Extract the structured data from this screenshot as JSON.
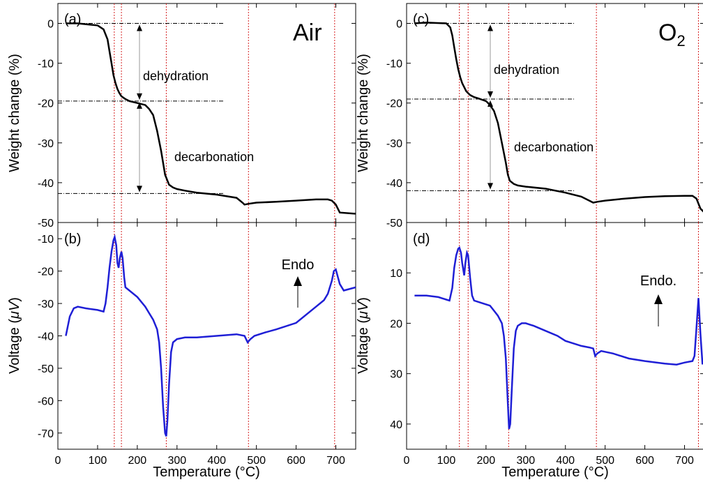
{
  "figure": {
    "x_axis_label": "Temperature (°C)",
    "panel_left": {
      "weight_ylabel": "Weight change (%)",
      "voltage_ylabel": "Voltage (μV)",
      "tag_weight": "(a)",
      "tag_voltage": "(b)",
      "atmosphere_label": "Air",
      "atmosphere_sub": "",
      "dehydration_label": "dehydration",
      "decarbonation_label": "decarbonation",
      "endo_label": "Endo"
    },
    "panel_right": {
      "weight_ylabel": "Weight change (%)",
      "voltage_ylabel": "Voltage (μV)",
      "tag_weight": "(c)",
      "tag_voltage": "(d)",
      "atmosphere_label": "O",
      "atmosphere_sub": "2",
      "dehydration_label": "dehydration",
      "decarbonation_label": "decarbonation",
      "endo_label": "Endo."
    }
  },
  "colors": {
    "tg_curve": "#000000",
    "dta_curve": "#1f1fd6",
    "event_line": "#d62020",
    "annotation_line": "#000000"
  },
  "chart_data": [
    {
      "id": "a",
      "type": "line",
      "title": "",
      "xlabel": "Temperature (°C)",
      "ylabel": "Weight change (%)",
      "xlim": [
        0,
        750
      ],
      "ylim": [
        -50,
        5
      ],
      "xticks": [
        0,
        100,
        200,
        300,
        400,
        500,
        600,
        700
      ],
      "yticks": [
        0,
        -10,
        -20,
        -30,
        -40,
        -50
      ],
      "annotations": [
        "(a)",
        "Air",
        "dehydration",
        "decarbonation"
      ],
      "series": [
        {
          "x": [
            20,
            50,
            100,
            115,
            125,
            130,
            135,
            140,
            145,
            150,
            155,
            160,
            170,
            180,
            200,
            220,
            230,
            240,
            250,
            260,
            270,
            280,
            290,
            300,
            320,
            350,
            400,
            450,
            465,
            470,
            480,
            500,
            550,
            600,
            650,
            680,
            690,
            700,
            710,
            750
          ],
          "y": [
            0,
            0,
            -0.5,
            -1.5,
            -4,
            -7,
            -10,
            -13,
            -15,
            -16.5,
            -17.5,
            -18.3,
            -19,
            -19.5,
            -20,
            -20.5,
            -21.5,
            -23,
            -27,
            -32,
            -38,
            -40.5,
            -41.2,
            -41.6,
            -42,
            -42.5,
            -43,
            -43.8,
            -45,
            -45.5,
            -45.3,
            -45,
            -44.8,
            -44.5,
            -44.2,
            -44.2,
            -44.5,
            -45.5,
            -47.5,
            -47.8
          ]
        }
      ],
      "reference_lines": {
        "horizontal_levels": [
          0,
          -19.5,
          -42.7
        ],
        "vertical_temperatures": [
          142,
          160,
          273,
          480,
          697
        ]
      }
    },
    {
      "id": "b",
      "type": "line",
      "title": "",
      "xlabel": "Temperature (°C)",
      "ylabel": "Voltage (μV)",
      "xlim": [
        0,
        750
      ],
      "ylim": [
        -75,
        -5
      ],
      "xticks": [
        0,
        100,
        200,
        300,
        400,
        500,
        600,
        700
      ],
      "yticks": [
        -10,
        -20,
        -30,
        -40,
        -50,
        -60,
        -70
      ],
      "annotations": [
        "(b)",
        "Endo"
      ],
      "series": [
        {
          "x": [
            20,
            30,
            40,
            50,
            70,
            100,
            115,
            120,
            125,
            130,
            135,
            140,
            143,
            147,
            150,
            153,
            156,
            160,
            163,
            167,
            170,
            180,
            200,
            220,
            230,
            240,
            250,
            255,
            260,
            265,
            270,
            273,
            276,
            280,
            285,
            290,
            300,
            320,
            350,
            400,
            450,
            470,
            478,
            485,
            495,
            520,
            550,
            600,
            650,
            670,
            680,
            690,
            695,
            700,
            710,
            720,
            750
          ],
          "y": [
            -40,
            -34,
            -31.5,
            -31,
            -31.5,
            -32,
            -32.5,
            -30,
            -25,
            -19,
            -14,
            -10.5,
            -9.5,
            -12,
            -17.5,
            -19,
            -16,
            -14,
            -16,
            -22,
            -25,
            -26,
            -28,
            -31,
            -33,
            -35,
            -38,
            -42,
            -50,
            -62,
            -70,
            -71,
            -66,
            -55,
            -45,
            -42,
            -41,
            -40.5,
            -40.5,
            -40,
            -39.5,
            -40,
            -42,
            -41,
            -40,
            -39,
            -38,
            -36,
            -31,
            -29,
            -27,
            -23,
            -20,
            -19.5,
            -24,
            -26,
            -25
          ]
        }
      ],
      "reference_lines": {
        "vertical_temperatures": [
          142,
          160,
          273,
          480,
          697
        ]
      }
    },
    {
      "id": "c",
      "type": "line",
      "title": "",
      "xlabel": "Temperature (°C)",
      "ylabel": "Weight change (%)",
      "xlim": [
        0,
        750
      ],
      "ylim": [
        -50,
        5
      ],
      "xticks": [
        0,
        100,
        200,
        300,
        400,
        500,
        600,
        700
      ],
      "yticks": [
        0,
        -10,
        -20,
        -30,
        -40,
        -50
      ],
      "annotations": [
        "(c)",
        "O2",
        "dehydration",
        "decarbonation"
      ],
      "series": [
        {
          "x": [
            20,
            50,
            100,
            110,
            115,
            120,
            125,
            130,
            135,
            140,
            145,
            150,
            155,
            160,
            170,
            180,
            200,
            210,
            220,
            230,
            240,
            250,
            255,
            260,
            270,
            280,
            300,
            350,
            400,
            440,
            460,
            470,
            480,
            500,
            550,
            600,
            650,
            700,
            720,
            730,
            740,
            750
          ],
          "y": [
            0,
            0.2,
            0,
            -1,
            -3,
            -6,
            -9,
            -11.5,
            -13.5,
            -15,
            -16,
            -17,
            -17.5,
            -18,
            -18.5,
            -18.8,
            -19.5,
            -20.5,
            -22,
            -25,
            -30,
            -35,
            -38,
            -39.5,
            -40.3,
            -40.7,
            -41,
            -41.5,
            -42.5,
            -43.5,
            -44.5,
            -45,
            -44.8,
            -44.5,
            -44,
            -43.6,
            -43.4,
            -43.3,
            -43.3,
            -44,
            -46.5,
            -47.5
          ]
        }
      ],
      "reference_lines": {
        "horizontal_levels": [
          0,
          -19,
          -42
        ],
        "vertical_temperatures": [
          133,
          155,
          257,
          478,
          735
        ]
      }
    },
    {
      "id": "d",
      "type": "line",
      "title": "",
      "xlabel": "Temperature (°C)",
      "ylabel": "Voltage (μV)",
      "xlim": [
        0,
        750
      ],
      "ylim": [
        45,
        0
      ],
      "xticks": [
        0,
        100,
        200,
        300,
        400,
        500,
        600,
        700
      ],
      "yticks": [
        10,
        20,
        30,
        40
      ],
      "annotations": [
        "(d)",
        "Endo."
      ],
      "series": [
        {
          "x": [
            20,
            50,
            80,
            100,
            108,
            115,
            120,
            125,
            130,
            133,
            137,
            140,
            145,
            148,
            152,
            155,
            160,
            165,
            170,
            190,
            210,
            220,
            230,
            240,
            245,
            250,
            255,
            258,
            261,
            265,
            270,
            275,
            280,
            290,
            300,
            320,
            350,
            380,
            400,
            420,
            440,
            460,
            470,
            475,
            480,
            490,
            520,
            560,
            600,
            650,
            680,
            700,
            720,
            725,
            730,
            735,
            740,
            745,
            750
          ],
          "y": [
            14.5,
            14.5,
            14.8,
            15.3,
            15.5,
            13,
            9,
            6.5,
            5.2,
            5,
            6,
            8,
            10.5,
            8,
            6,
            6.5,
            11,
            14.5,
            15.5,
            16,
            16.5,
            17.5,
            18.5,
            20,
            22.5,
            27,
            36,
            41,
            40,
            33,
            25,
            21.5,
            20.5,
            20,
            20,
            20.5,
            21.5,
            22.5,
            23.5,
            24,
            24.5,
            24.8,
            25,
            26.5,
            26,
            25.5,
            26,
            27,
            27.5,
            28,
            28.2,
            27.8,
            27.5,
            26.5,
            21,
            15,
            22,
            28,
            28
          ]
        }
      ],
      "reference_lines": {
        "vertical_temperatures": [
          133,
          155,
          257,
          478,
          735
        ]
      }
    }
  ]
}
